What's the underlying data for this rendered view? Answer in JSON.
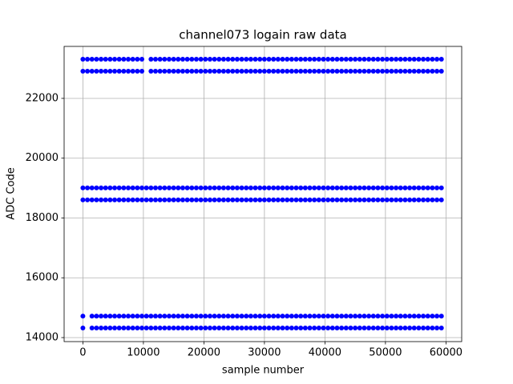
{
  "chart_data": {
    "type": "scatter",
    "title": "channel073 logain raw data",
    "x_label": "sample number",
    "y_label": "ADC Code",
    "x": [
      0,
      750,
      1500,
      2250,
      3000,
      3750,
      4500,
      5250,
      6000,
      6750,
      7500,
      8250,
      9000,
      9750,
      10500,
      11250,
      12000,
      12750,
      13500,
      14250,
      15000,
      15750,
      16500,
      17250,
      18000,
      18750,
      19500,
      20250,
      21000,
      21750,
      22500,
      23250,
      24000,
      24750,
      25500,
      26250,
      27000,
      27750,
      28500,
      29250,
      30000,
      30750,
      31500,
      32250,
      33000,
      33750,
      34500,
      35250,
      36000,
      36750,
      37500,
      38250,
      39000,
      39750,
      40500,
      41250,
      42000,
      42750,
      43500,
      44250,
      45000,
      45750,
      46500,
      47250,
      48000,
      48750,
      49500,
      50250,
      51000,
      51750,
      52500,
      53250,
      54000,
      54750,
      55500,
      56250,
      57000,
      57750,
      58500,
      59250
    ],
    "series": [
      {
        "color": "#0000ff",
        "values": [
          23310,
          23310,
          23310,
          23310,
          23310,
          23310,
          23310,
          23310,
          23310,
          23310,
          23310,
          23310,
          23310,
          23310,
          null,
          23310,
          23310,
          23310,
          23310,
          23310,
          23310,
          23310,
          23310,
          23310,
          23310,
          23310,
          23310,
          23310,
          23310,
          23310,
          23310,
          23310,
          23310,
          23310,
          23310,
          23310,
          23310,
          23310,
          23310,
          23310,
          23310,
          23310,
          23310,
          23310,
          23310,
          23310,
          23310,
          23310,
          23310,
          23310,
          23310,
          23310,
          23310,
          23310,
          23310,
          23310,
          23310,
          23310,
          23310,
          23310,
          23310,
          23310,
          23310,
          23310,
          23310,
          23310,
          23310,
          23310,
          23310,
          23310,
          23310,
          23310,
          23310,
          23310,
          23310,
          23310,
          23310,
          23310,
          23310,
          23310
        ]
      },
      {
        "color": "#0000ff",
        "values": [
          22910,
          22910,
          22910,
          22910,
          22910,
          22910,
          22910,
          22910,
          22910,
          22910,
          22910,
          22910,
          22910,
          22910,
          null,
          22910,
          22910,
          22910,
          22910,
          22910,
          22910,
          22910,
          22910,
          22910,
          22910,
          22910,
          22910,
          22910,
          22910,
          22910,
          22910,
          22910,
          22910,
          22910,
          22910,
          22910,
          22910,
          22910,
          22910,
          22910,
          22910,
          22910,
          22910,
          22910,
          22910,
          22910,
          22910,
          22910,
          22910,
          22910,
          22910,
          22910,
          22910,
          22910,
          22910,
          22910,
          22910,
          22910,
          22910,
          22910,
          22910,
          22910,
          22910,
          22910,
          22910,
          22910,
          22910,
          22910,
          22910,
          22910,
          22910,
          22910,
          22910,
          22910,
          22910,
          22910,
          22910,
          22910,
          22910,
          22910
        ]
      },
      {
        "color": "#0000ff",
        "values": [
          19005,
          19005,
          19005,
          19005,
          19005,
          19005,
          19005,
          19005,
          19005,
          19005,
          19005,
          19005,
          19005,
          19005,
          19005,
          19005,
          19005,
          19005,
          19005,
          19005,
          19005,
          19005,
          19005,
          19005,
          19005,
          19005,
          19005,
          19005,
          19005,
          19005,
          19005,
          19005,
          19005,
          19005,
          19005,
          19005,
          19005,
          19005,
          19005,
          19005,
          19005,
          19005,
          19005,
          19005,
          19005,
          19005,
          19005,
          19005,
          19005,
          19005,
          19005,
          19005,
          19005,
          19005,
          19005,
          19005,
          19005,
          19005,
          19005,
          19005,
          19005,
          19005,
          19005,
          19005,
          19005,
          19005,
          19005,
          19005,
          19005,
          19005,
          19005,
          19005,
          19005,
          19005,
          19005,
          19005,
          19005,
          19005,
          19005,
          19005
        ]
      },
      {
        "color": "#0000ff",
        "values": [
          18605,
          18605,
          18605,
          18605,
          18605,
          18605,
          18605,
          18605,
          18605,
          18605,
          18605,
          18605,
          18605,
          18605,
          18605,
          18605,
          18605,
          18605,
          18605,
          18605,
          18605,
          18605,
          18605,
          18605,
          18605,
          18605,
          18605,
          18605,
          18605,
          18605,
          18605,
          18605,
          18605,
          18605,
          18605,
          18605,
          18605,
          18605,
          18605,
          18605,
          18605,
          18605,
          18605,
          18605,
          18605,
          18605,
          18605,
          18605,
          18605,
          18605,
          18605,
          18605,
          18605,
          18605,
          18605,
          18605,
          18605,
          18605,
          18605,
          18605,
          18605,
          18605,
          18605,
          18605,
          18605,
          18605,
          18605,
          18605,
          18605,
          18605,
          18605,
          18605,
          18605,
          18605,
          18605,
          18605,
          18605,
          18605,
          18605,
          18605
        ]
      },
      {
        "color": "#0000ff",
        "values": [
          14720,
          null,
          14720,
          14720,
          14720,
          14720,
          14720,
          14720,
          14720,
          14720,
          14720,
          14720,
          14720,
          14720,
          14720,
          14720,
          14720,
          14720,
          14720,
          14720,
          14720,
          14720,
          14720,
          14720,
          14720,
          14720,
          14720,
          14720,
          14720,
          14720,
          14720,
          14720,
          14720,
          14720,
          14720,
          14720,
          14720,
          14720,
          14720,
          14720,
          14720,
          14720,
          14720,
          14720,
          14720,
          14720,
          14720,
          14720,
          14720,
          14720,
          14720,
          14720,
          14720,
          14720,
          14720,
          14720,
          14720,
          14720,
          14720,
          14720,
          14720,
          14720,
          14720,
          14720,
          14720,
          14720,
          14720,
          14720,
          14720,
          14720,
          14720,
          14720,
          14720,
          14720,
          14720,
          14720,
          14720,
          14720,
          14720,
          14720
        ]
      },
      {
        "color": "#0000ff",
        "values": [
          14320,
          null,
          14320,
          14320,
          14320,
          14320,
          14320,
          14320,
          14320,
          14320,
          14320,
          14320,
          14320,
          14320,
          14320,
          14320,
          14320,
          14320,
          14320,
          14320,
          14320,
          14320,
          14320,
          14320,
          14320,
          14320,
          14320,
          14320,
          14320,
          14320,
          14320,
          14320,
          14320,
          14320,
          14320,
          14320,
          14320,
          14320,
          14320,
          14320,
          14320,
          14320,
          14320,
          14320,
          14320,
          14320,
          14320,
          14320,
          14320,
          14320,
          14320,
          14320,
          14320,
          14320,
          14320,
          14320,
          14320,
          14320,
          14320,
          14320,
          14320,
          14320,
          14320,
          14320,
          14320,
          14320,
          14320,
          14320,
          14320,
          14320,
          14320,
          14320,
          14320,
          14320,
          14320,
          14320,
          14320,
          14320,
          14320,
          14320
        ]
      }
    ],
    "xlim": [
      -3100,
      62600
    ],
    "xticks": [
      0,
      10000,
      20000,
      30000,
      40000,
      50000,
      60000
    ],
    "ylim": [
      13866,
      23738
    ],
    "yticks": [
      14000,
      16000,
      18000,
      20000,
      22000
    ],
    "grid": true
  }
}
